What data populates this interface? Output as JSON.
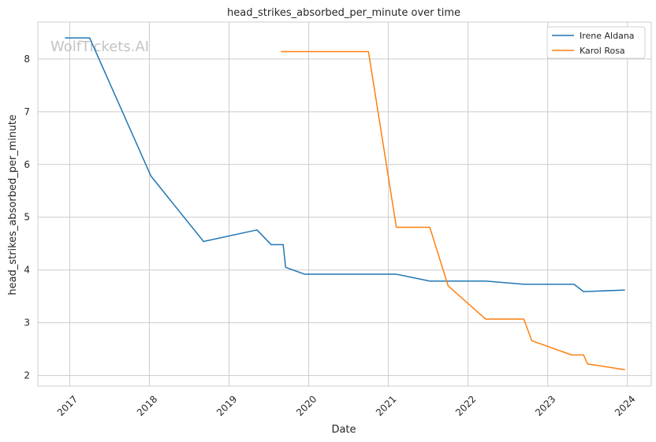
{
  "chart_data": {
    "type": "line",
    "title": "head_strikes_absorbed_per_minute over time",
    "xlabel": "Date",
    "ylabel": "head_strikes_absorbed_per_minute",
    "watermark": "WolfTickets.AI",
    "xlim": [
      2016.6,
      2024.3
    ],
    "ylim": [
      1.8,
      8.7
    ],
    "x_ticks": [
      2017,
      2018,
      2019,
      2020,
      2021,
      2022,
      2023,
      2024
    ],
    "x_tick_labels": [
      "2017",
      "2018",
      "2019",
      "2020",
      "2021",
      "2022",
      "2023",
      "2024"
    ],
    "y_ticks": [
      2,
      3,
      4,
      5,
      6,
      7,
      8
    ],
    "y_tick_labels": [
      "2",
      "3",
      "4",
      "5",
      "6",
      "7",
      "8"
    ],
    "grid": true,
    "legend_position": "top-right",
    "series": [
      {
        "name": "Irene Aldana",
        "color": "#1f77b4",
        "points": [
          [
            2016.94,
            8.4
          ],
          [
            2017.25,
            8.4
          ],
          [
            2018.02,
            5.78
          ],
          [
            2018.68,
            4.54
          ],
          [
            2019.35,
            4.76
          ],
          [
            2019.53,
            4.48
          ],
          [
            2019.68,
            4.48
          ],
          [
            2019.71,
            4.05
          ],
          [
            2019.95,
            3.92
          ],
          [
            2021.1,
            3.92
          ],
          [
            2021.52,
            3.79
          ],
          [
            2022.22,
            3.79
          ],
          [
            2022.7,
            3.73
          ],
          [
            2023.33,
            3.73
          ],
          [
            2023.45,
            3.59
          ],
          [
            2023.97,
            3.62
          ]
        ]
      },
      {
        "name": "Karol Rosa",
        "color": "#ff7f0e",
        "points": [
          [
            2019.65,
            8.14
          ],
          [
            2020.75,
            8.14
          ],
          [
            2021.1,
            4.81
          ],
          [
            2021.52,
            4.81
          ],
          [
            2021.75,
            3.7
          ],
          [
            2022.22,
            3.07
          ],
          [
            2022.7,
            3.07
          ],
          [
            2022.8,
            2.66
          ],
          [
            2023.3,
            2.39
          ],
          [
            2023.45,
            2.39
          ],
          [
            2023.5,
            2.22
          ],
          [
            2023.97,
            2.11
          ]
        ]
      }
    ]
  }
}
